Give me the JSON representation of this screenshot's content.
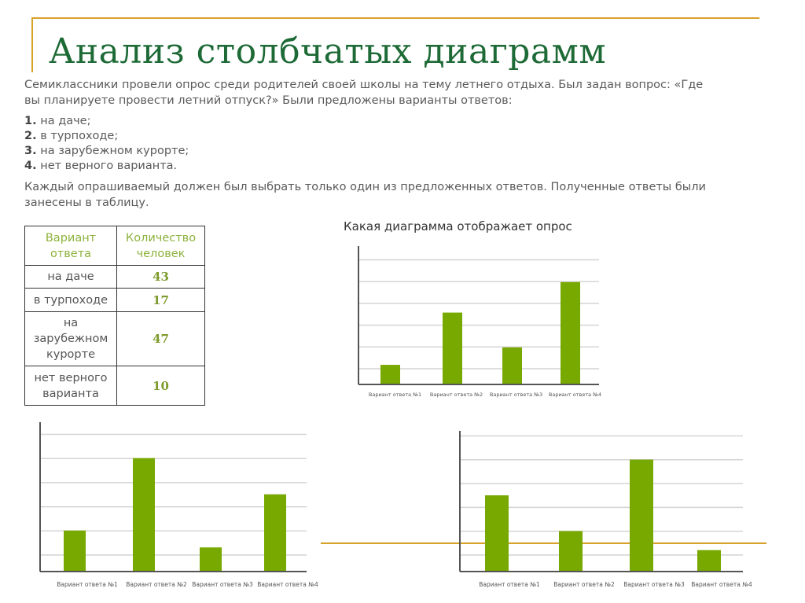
{
  "slide": {
    "title": "Анализ столбчатых диаграмм",
    "intro": [
      "Семиклассники провели опрос среди родителей своей школы  на тему летнего отдыха. Был задан вопрос: «Где",
      "вы планируете провести летний отпуск?» Были предложены варианты ответов:"
    ],
    "options": [
      {
        "num": "1.",
        "text": " на даче;"
      },
      {
        "num": "2.",
        "text": " в турпоходе;"
      },
      {
        "num": "3.",
        "text": " на зарубежном курорте;"
      },
      {
        "num": "4.",
        "text": " нет верного варианта."
      }
    ],
    "outro": [
      "Каждый опрашиваемый должен был выбрать только один из предложенных ответов. Полученные ответы были",
      "занесены в таблицу."
    ],
    "question": "Какая диаграмма отображает опрос",
    "accent_color": "#d7a22a",
    "title_color": "#1d6a36",
    "bar_color": "#78a900"
  },
  "table": {
    "headers": [
      "Вариант ответа",
      "Количество человек"
    ],
    "rows": [
      {
        "option": "на даче",
        "count": "43"
      },
      {
        "option": "в турпоходе",
        "count": "17"
      },
      {
        "option": "на зарубежном курорте",
        "count": "47"
      },
      {
        "option": "нет верного варианта",
        "count": "10"
      }
    ]
  },
  "chart_data": [
    {
      "type": "bar",
      "categories": [
        "Вариант ответа №1",
        "Вариант ответа №2",
        "Вариант ответа №3",
        "Вариант ответа №4"
      ],
      "values": [
        9,
        33,
        17,
        47
      ],
      "grid": true,
      "ylabels": "none"
    },
    {
      "type": "bar",
      "categories": [
        "Вариант ответа №1",
        "Вариант ответа №2",
        "Вариант ответа №3",
        "Вариант ответа №4"
      ],
      "values": [
        17,
        47,
        10,
        32
      ],
      "grid": true,
      "ylabels": "none"
    },
    {
      "type": "bar",
      "categories": [
        "Вариант ответа №1",
        "Вариант ответа №2",
        "Вариант ответа №3",
        "Вариант ответа №4"
      ],
      "values": [
        32,
        17,
        47,
        9
      ],
      "grid": true,
      "ylabels": "none"
    }
  ]
}
